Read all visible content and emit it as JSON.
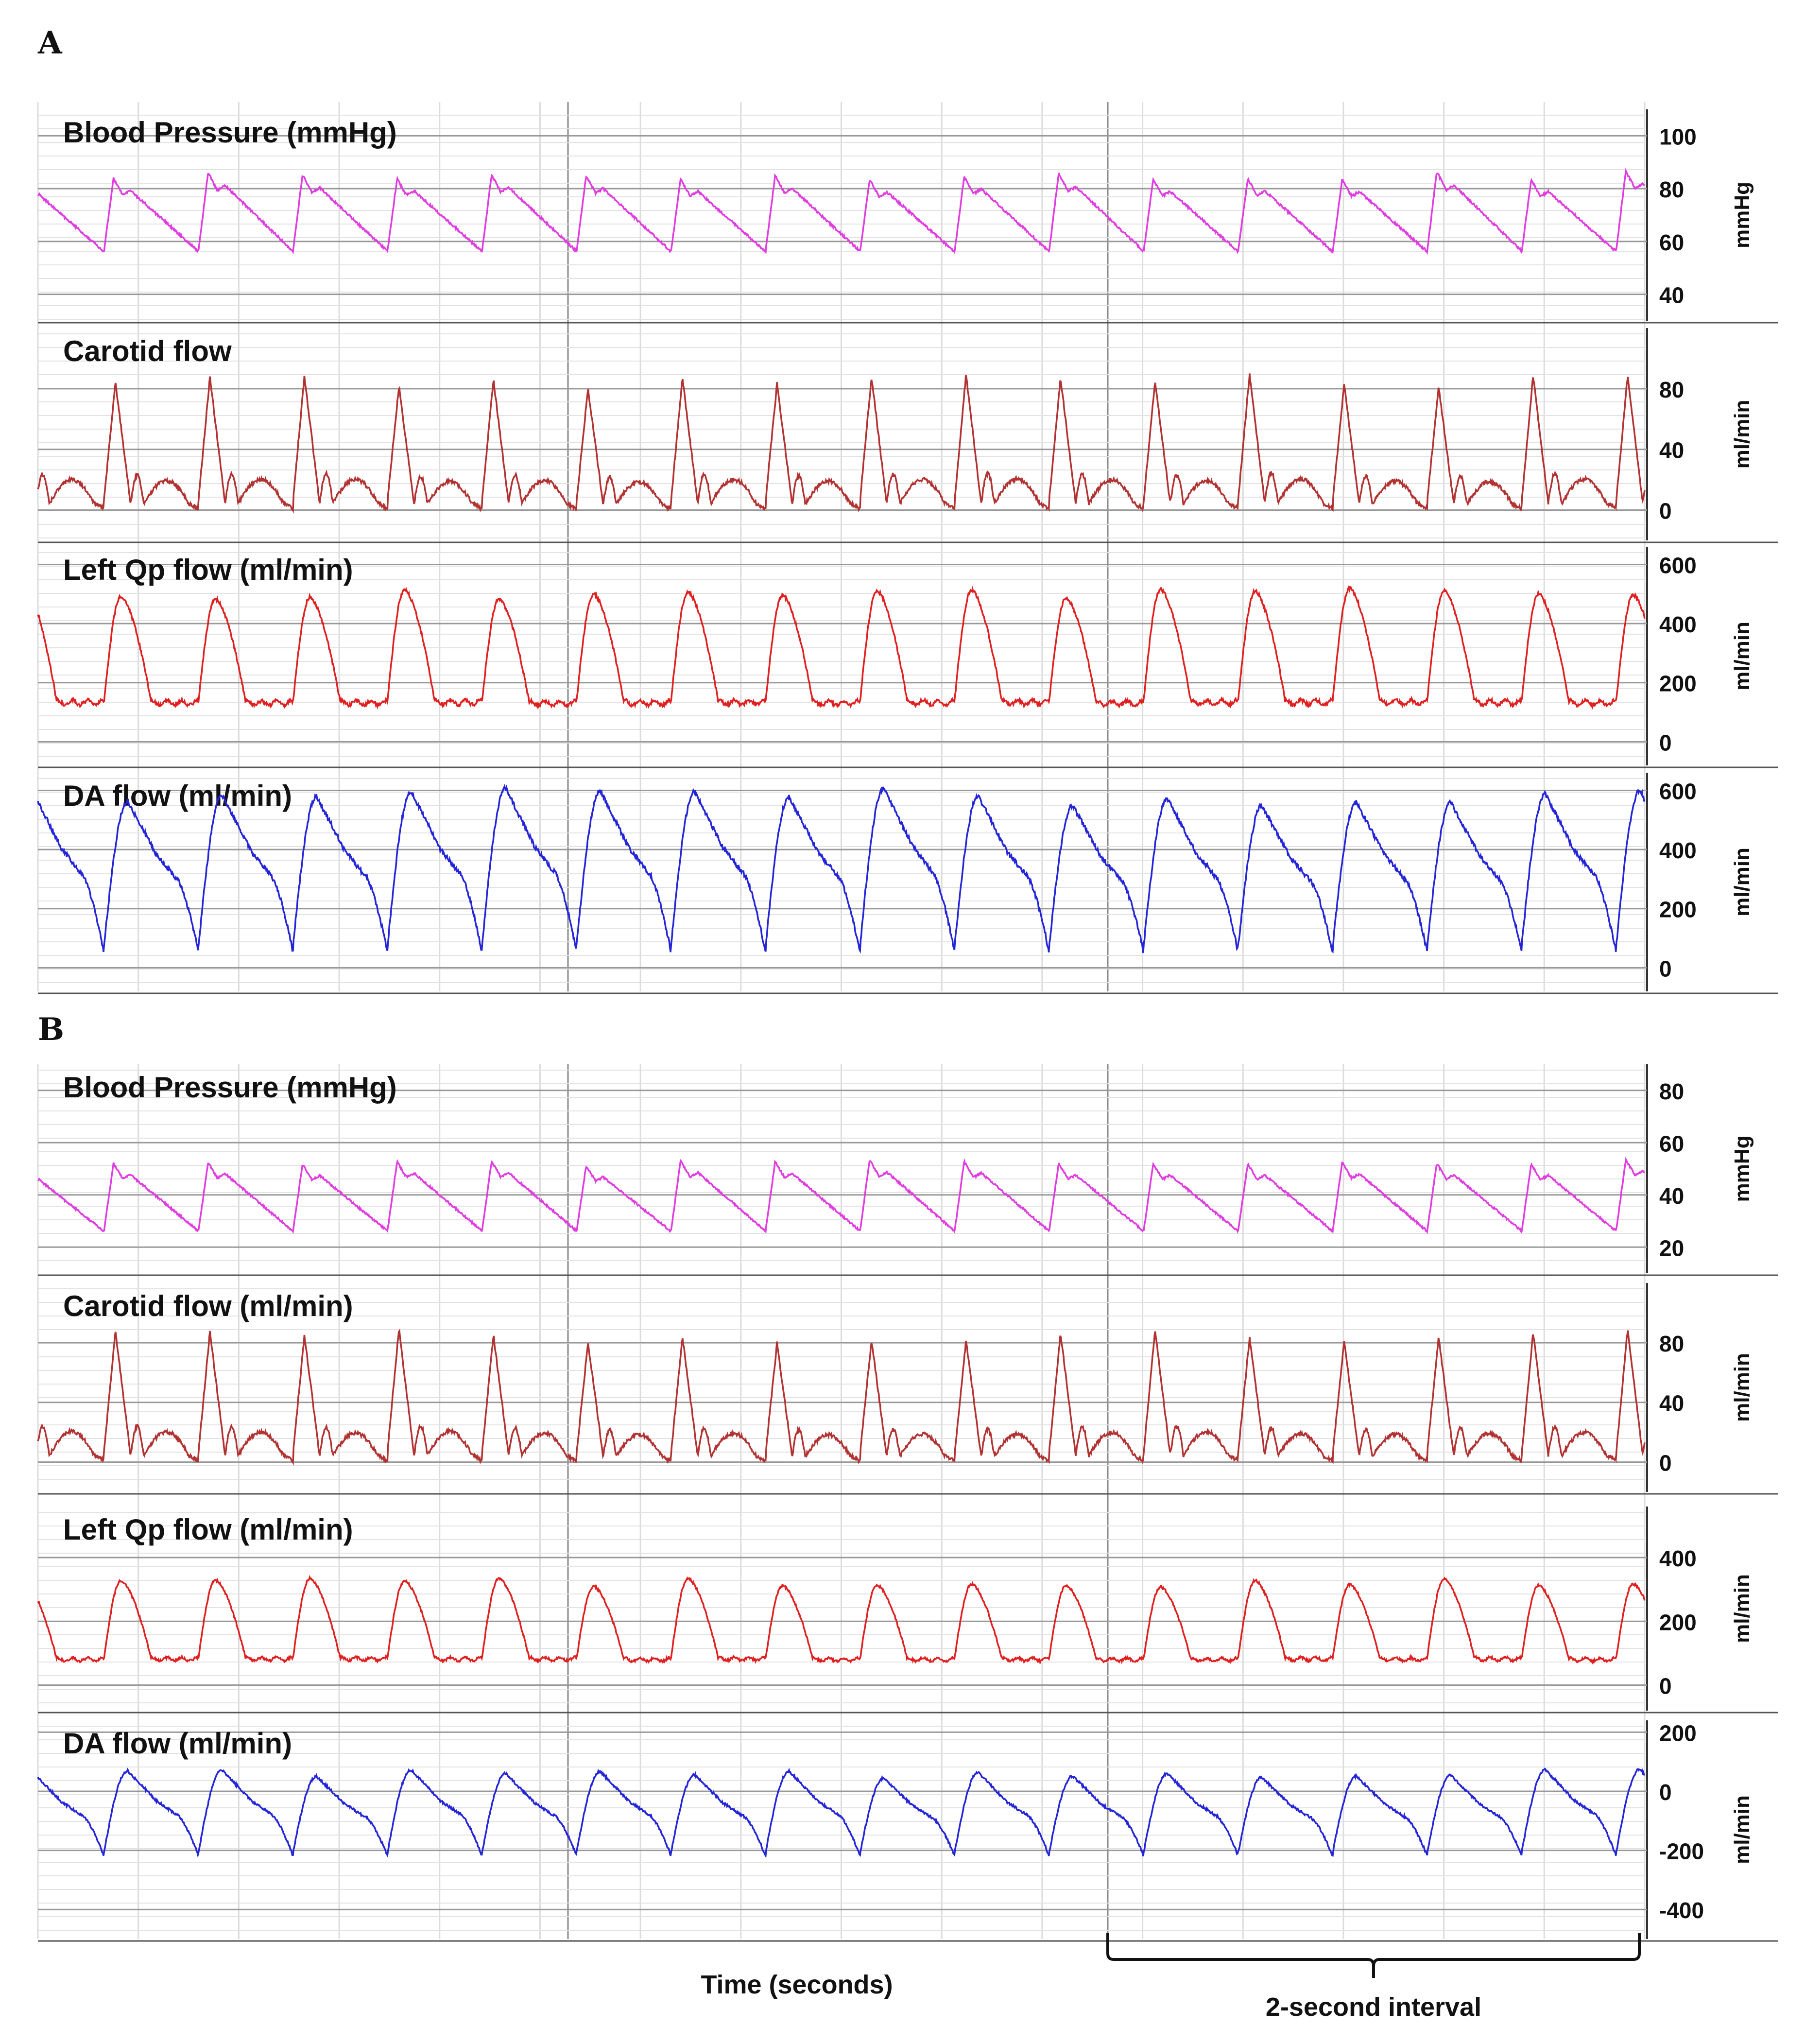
{
  "figure": {
    "x_axis_label": "Time (seconds)",
    "interval_label": "2-second interval"
  },
  "chart_data": [
    {
      "panel": "A",
      "type": "line",
      "xlabel": "Time (seconds)",
      "beats": 17,
      "traces": [
        {
          "id": "bp",
          "title": "Blood Pressure (mmHg)",
          "unit": "mmHg",
          "color": "#e03ce0",
          "ylim": [
            30,
            110
          ],
          "ticks": [
            100,
            80,
            60,
            40
          ],
          "min": 55,
          "max": 85,
          "shape": "pressure"
        },
        {
          "id": "carotid",
          "title": "Carotid flow",
          "unit": "ml/min",
          "color": "#b23232",
          "ylim": [
            -20,
            120
          ],
          "ticks": [
            80,
            40,
            0
          ],
          "min": 0,
          "max": 85,
          "shape": "carotid"
        },
        {
          "id": "qp",
          "title": "Left Qp flow (ml/min)",
          "unit": "ml/min",
          "color": "#e02020",
          "ylim": [
            -80,
            660
          ],
          "ticks": [
            600,
            400,
            200,
            0
          ],
          "min": 100,
          "max": 500,
          "shape": "qp"
        },
        {
          "id": "da",
          "title": "DA flow (ml/min)",
          "unit": "ml/min",
          "color": "#2424d8",
          "ylim": [
            -80,
            660
          ],
          "ticks": [
            600,
            400,
            200,
            0
          ],
          "min": 50,
          "max": 580,
          "shape": "da"
        }
      ]
    },
    {
      "panel": "B",
      "type": "line",
      "xlabel": "Time (seconds)",
      "beats": 17,
      "traces": [
        {
          "id": "bp",
          "title": "Blood Pressure (mmHg)",
          "unit": "mmHg",
          "color": "#e03ce0",
          "ylim": [
            10,
            90
          ],
          "ticks": [
            80,
            60,
            40,
            20
          ],
          "min": 25,
          "max": 52,
          "shape": "pressure"
        },
        {
          "id": "carotid",
          "title": "Carotid flow (ml/min)",
          "unit": "ml/min",
          "color": "#b23232",
          "ylim": [
            -20,
            120
          ],
          "ticks": [
            80,
            40,
            0
          ],
          "min": 0,
          "max": 85,
          "shape": "carotid"
        },
        {
          "id": "qp",
          "title": "Left Qp flow (ml/min)",
          "unit": "ml/min",
          "color": "#e02020",
          "ylim": [
            -80,
            560
          ],
          "ticks": [
            400,
            200,
            0
          ],
          "min": 60,
          "max": 320,
          "shape": "qp"
        },
        {
          "id": "da",
          "title": "DA flow (ml/min)",
          "unit": "ml/min",
          "color": "#2424d8",
          "ylim": [
            -500,
            240
          ],
          "ticks": [
            200,
            0,
            -200,
            -400
          ],
          "min": -220,
          "max": 60,
          "shape": "da"
        }
      ]
    }
  ]
}
